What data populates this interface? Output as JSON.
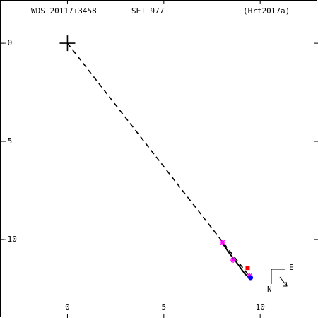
{
  "header": {
    "wds_id": "WDS 20117+3458",
    "discoverer": "SEI 977",
    "orbit_ref": "(Hrt2017a)"
  },
  "compass": {
    "east_label": "E",
    "north_label": "N"
  },
  "chart_data": {
    "type": "scatter",
    "title": "",
    "xlabel": "",
    "ylabel": "",
    "xlim": [
      -3.5,
      13
    ],
    "ylim": [
      -14,
      2.2
    ],
    "y_inverted": true,
    "x_ticks": [
      0,
      5,
      10
    ],
    "x_tick_labels": [
      "0",
      "5",
      "10"
    ],
    "y_ticks": [
      0,
      -5,
      -10
    ],
    "y_tick_labels": [
      "-0",
      "-5",
      "-10"
    ],
    "primary_star": {
      "x": 0,
      "y": 0,
      "marker": "plus"
    },
    "orbit_line": {
      "x": [
        8.05,
        8.4,
        8.8,
        9.2,
        9.5
      ],
      "y": [
        -10.2,
        -10.7,
        -11.2,
        -11.75,
        -12.0
      ],
      "color": "#000000"
    },
    "dashed_line": {
      "from": [
        0,
        0
      ],
      "to": [
        9.5,
        -11.95
      ],
      "color": "#000000"
    },
    "series": [
      {
        "marker": "asterisk",
        "color": "#ff00ff",
        "x": [
          8.05,
          8.6,
          9.45
        ],
        "y": [
          -10.15,
          -11.05,
          -11.85
        ]
      },
      {
        "marker": "circle",
        "color": "#0000ff",
        "x": [
          9.5
        ],
        "y": [
          -11.95
        ]
      },
      {
        "marker": "square",
        "color": "#ff0000",
        "x": [
          9.35
        ],
        "y": [
          -11.45
        ]
      }
    ],
    "grid": false
  }
}
